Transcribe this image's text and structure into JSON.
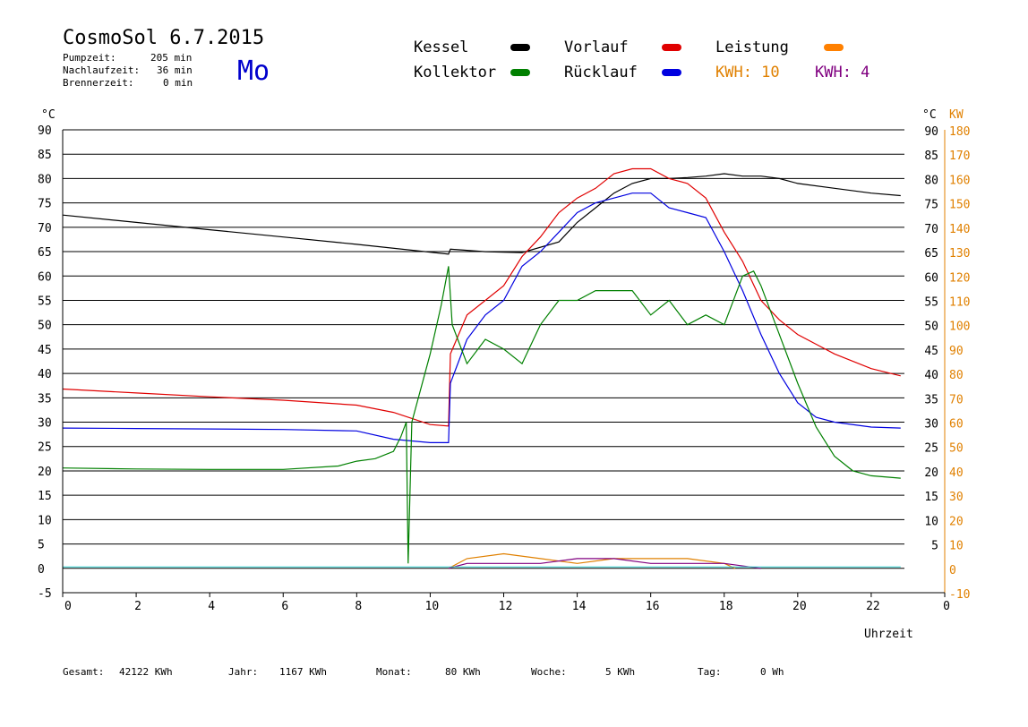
{
  "header": {
    "title": "CosmoSol 6.7.2015",
    "weekday": "Mo",
    "stats": [
      {
        "label": "Pumpzeit:",
        "value": "205 min"
      },
      {
        "label": "Nachlaufzeit:",
        "value": "36 min"
      },
      {
        "label": "Brennerzeit:",
        "value": "0 min"
      }
    ]
  },
  "legend": {
    "kessel": {
      "label": "Kessel",
      "color": "#000000"
    },
    "vorlauf": {
      "label": "Vorlauf",
      "color": "#e00000"
    },
    "leistung": {
      "label": "Leistung",
      "color": "#ff8000"
    },
    "kollektor": {
      "label": "Kollektor",
      "color": "#008000"
    },
    "ruecklauf": {
      "label": "Rücklauf",
      "color": "#0000e0"
    },
    "kwh1": {
      "label": "KWH: 10",
      "color": "#e08000"
    },
    "kwh2": {
      "label": "KWH: 4",
      "color": "#800080"
    }
  },
  "footer": {
    "gesamt_label": "Gesamt:",
    "gesamt_value": "42122 KWh",
    "jahr_label": "Jahr:",
    "jahr_value": "1167 KWh",
    "monat_label": "Monat:",
    "monat_value": "80 KWh",
    "woche_label": "Woche:",
    "woche_value": "5 KWh",
    "tag_label": "Tag:",
    "tag_value": "0 Wh"
  },
  "chart_data": {
    "type": "line",
    "xlabel": "Uhrzeit",
    "ylabel_left": "°C",
    "ylabel_right_temp": "°C",
    "ylabel_right_power": "KW",
    "xlim": [
      0,
      24
    ],
    "ylim": [
      -5,
      90
    ],
    "x_ticks": [
      "0",
      "2",
      "4",
      "6",
      "8",
      "10",
      "12",
      "14",
      "16",
      "18",
      "20",
      "22",
      "0"
    ],
    "y_ticks": [
      "-5",
      "0",
      "5",
      "10",
      "15",
      "20",
      "25",
      "30",
      "35",
      "40",
      "45",
      "50",
      "55",
      "60",
      "65",
      "70",
      "75",
      "80",
      "85",
      "90"
    ],
    "y_ticks_right_temp": [
      "5",
      "10",
      "15",
      "20",
      "25",
      "30",
      "35",
      "40",
      "45",
      "50",
      "55",
      "60",
      "65",
      "70",
      "75",
      "80",
      "85",
      "90"
    ],
    "y_ticks_right_power": [
      "-10",
      "0",
      "10",
      "20",
      "30",
      "40",
      "50",
      "60",
      "70",
      "80",
      "90",
      "100",
      "110",
      "120",
      "130",
      "140",
      "150",
      "160",
      "170",
      "180"
    ],
    "grid": "horizontal",
    "series": [
      {
        "name": "Kessel",
        "color": "#000000",
        "points": [
          [
            0,
            72.5
          ],
          [
            2,
            71
          ],
          [
            4,
            69.5
          ],
          [
            6,
            68
          ],
          [
            8,
            66.5
          ],
          [
            10.5,
            64.5
          ],
          [
            10.55,
            65.5
          ],
          [
            11.5,
            65
          ],
          [
            12.5,
            64.8
          ],
          [
            13.5,
            67
          ],
          [
            14,
            71
          ],
          [
            14.5,
            74
          ],
          [
            15,
            77
          ],
          [
            15.5,
            79
          ],
          [
            16,
            80
          ],
          [
            16.5,
            80
          ],
          [
            17,
            80.2
          ],
          [
            17.5,
            80.5
          ],
          [
            18,
            81
          ],
          [
            18.5,
            80.5
          ],
          [
            19,
            80.5
          ],
          [
            19.5,
            80
          ],
          [
            20,
            79
          ],
          [
            21,
            78
          ],
          [
            22,
            77
          ],
          [
            22.8,
            76.5
          ]
        ]
      },
      {
        "name": "Vorlauf",
        "color": "#e00000",
        "points": [
          [
            0,
            36.8
          ],
          [
            2,
            36
          ],
          [
            4,
            35.2
          ],
          [
            6,
            34.5
          ],
          [
            8,
            33.5
          ],
          [
            9,
            32
          ],
          [
            10,
            29.5
          ],
          [
            10.5,
            29.2
          ],
          [
            10.55,
            44
          ],
          [
            11,
            52
          ],
          [
            11.5,
            55
          ],
          [
            12,
            58
          ],
          [
            12.5,
            64
          ],
          [
            13,
            68
          ],
          [
            13.5,
            73
          ],
          [
            14,
            76
          ],
          [
            14.5,
            78
          ],
          [
            15,
            81
          ],
          [
            15.5,
            82
          ],
          [
            16,
            82
          ],
          [
            16.5,
            80
          ],
          [
            17,
            79
          ],
          [
            17.5,
            76
          ],
          [
            18,
            69
          ],
          [
            18.5,
            63
          ],
          [
            19,
            55
          ],
          [
            19.5,
            51
          ],
          [
            20,
            48
          ],
          [
            20.5,
            46
          ],
          [
            21,
            44
          ],
          [
            22,
            41
          ],
          [
            22.8,
            39.5
          ]
        ]
      },
      {
        "name": "Rücklauf",
        "color": "#0000e0",
        "points": [
          [
            0,
            28.8
          ],
          [
            2,
            28.7
          ],
          [
            4,
            28.6
          ],
          [
            6,
            28.5
          ],
          [
            8,
            28.2
          ],
          [
            9,
            26.5
          ],
          [
            10,
            25.8
          ],
          [
            10.5,
            25.8
          ],
          [
            10.55,
            38
          ],
          [
            11,
            47
          ],
          [
            11.5,
            52
          ],
          [
            12,
            55
          ],
          [
            12.5,
            62
          ],
          [
            13,
            65
          ],
          [
            13.5,
            69
          ],
          [
            14,
            73
          ],
          [
            14.5,
            75
          ],
          [
            15,
            76
          ],
          [
            15.5,
            77
          ],
          [
            16,
            77
          ],
          [
            16.5,
            74
          ],
          [
            17,
            73
          ],
          [
            17.5,
            72
          ],
          [
            18,
            65
          ],
          [
            18.5,
            57
          ],
          [
            19,
            48
          ],
          [
            19.5,
            40
          ],
          [
            20,
            34
          ],
          [
            20.5,
            31
          ],
          [
            21,
            30
          ],
          [
            22,
            29
          ],
          [
            22.8,
            28.8
          ]
        ]
      },
      {
        "name": "Kollektor",
        "color": "#008000",
        "points": [
          [
            0,
            20.6
          ],
          [
            2,
            20.4
          ],
          [
            4,
            20.3
          ],
          [
            6,
            20.3
          ],
          [
            7.5,
            21
          ],
          [
            8,
            22
          ],
          [
            8.5,
            22.5
          ],
          [
            9,
            24
          ],
          [
            9.2,
            27
          ],
          [
            9.35,
            30
          ],
          [
            9.4,
            1
          ],
          [
            9.5,
            30
          ],
          [
            10,
            44
          ],
          [
            10.3,
            54
          ],
          [
            10.5,
            62
          ],
          [
            10.6,
            50
          ],
          [
            11,
            42
          ],
          [
            11.5,
            47
          ],
          [
            12,
            45
          ],
          [
            12.5,
            42
          ],
          [
            13,
            50
          ],
          [
            13.5,
            55
          ],
          [
            14,
            55
          ],
          [
            14.5,
            57
          ],
          [
            15,
            57
          ],
          [
            15.5,
            57
          ],
          [
            16,
            52
          ],
          [
            16.5,
            55
          ],
          [
            17,
            50
          ],
          [
            17.5,
            52
          ],
          [
            18,
            50
          ],
          [
            18.5,
            60
          ],
          [
            18.8,
            61
          ],
          [
            19,
            58
          ],
          [
            19.5,
            48
          ],
          [
            20,
            38
          ],
          [
            20.5,
            29
          ],
          [
            21,
            23
          ],
          [
            21.5,
            20
          ],
          [
            22,
            19
          ],
          [
            22.8,
            18.5
          ]
        ]
      },
      {
        "name": "KWH: 10",
        "color": "#e08000",
        "points": [
          [
            10.5,
            0
          ],
          [
            11,
            2
          ],
          [
            12,
            3
          ],
          [
            13,
            2
          ],
          [
            14,
            1
          ],
          [
            15,
            2
          ],
          [
            16,
            2
          ],
          [
            17,
            2
          ],
          [
            18,
            1
          ],
          [
            18.3,
            0
          ]
        ]
      },
      {
        "name": "KWH: 4",
        "color": "#800080",
        "points": [
          [
            10.5,
            0
          ],
          [
            11,
            1
          ],
          [
            12,
            1
          ],
          [
            13,
            1
          ],
          [
            14,
            2
          ],
          [
            15,
            2
          ],
          [
            16,
            1
          ],
          [
            17,
            1
          ],
          [
            18,
            1
          ],
          [
            19,
            0
          ]
        ]
      },
      {
        "name": "",
        "color": "#40d0d0",
        "points": [
          [
            0,
            0.3
          ],
          [
            22.8,
            0.3
          ]
        ]
      }
    ]
  }
}
